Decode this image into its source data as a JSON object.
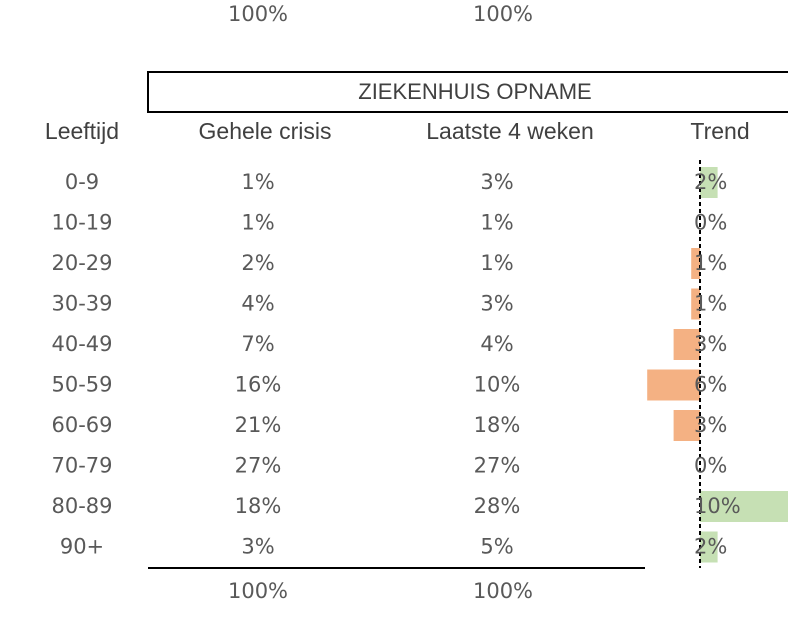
{
  "top_totals": [
    "100%",
    "100%"
  ],
  "header": "ZIEKENHUIS OPNAME",
  "columns": [
    "Leeftijd",
    "Gehele crisis",
    "Laatste 4 weken",
    "Trend"
  ],
  "rows": [
    {
      "age": "0-9",
      "total": "1%",
      "recent": "3%",
      "trend": {
        "value": 2,
        "label": "2%"
      }
    },
    {
      "age": "10-19",
      "total": "1%",
      "recent": "1%",
      "trend": {
        "value": 0,
        "label": "0%"
      }
    },
    {
      "age": "20-29",
      "total": "2%",
      "recent": "1%",
      "trend": {
        "value": -1,
        "label": "1%"
      }
    },
    {
      "age": "30-39",
      "total": "4%",
      "recent": "3%",
      "trend": {
        "value": -1,
        "label": "1%"
      }
    },
    {
      "age": "40-49",
      "total": "7%",
      "recent": "4%",
      "trend": {
        "value": -3,
        "label": "3%"
      }
    },
    {
      "age": "50-59",
      "total": "16%",
      "recent": "10%",
      "trend": {
        "value": -6,
        "label": "6%"
      }
    },
    {
      "age": "60-69",
      "total": "21%",
      "recent": "18%",
      "trend": {
        "value": -3,
        "label": "3%"
      }
    },
    {
      "age": "70-79",
      "total": "27%",
      "recent": "27%",
      "trend": {
        "value": 0,
        "label": "0%"
      }
    },
    {
      "age": "80-89",
      "total": "18%",
      "recent": "28%",
      "trend": {
        "value": 10,
        "label": "10%"
      }
    },
    {
      "age": "90+",
      "total": "3%",
      "recent": "5%",
      "trend": {
        "value": 2,
        "label": "2%"
      }
    }
  ],
  "bottom_totals": [
    "100%",
    "100%"
  ]
}
